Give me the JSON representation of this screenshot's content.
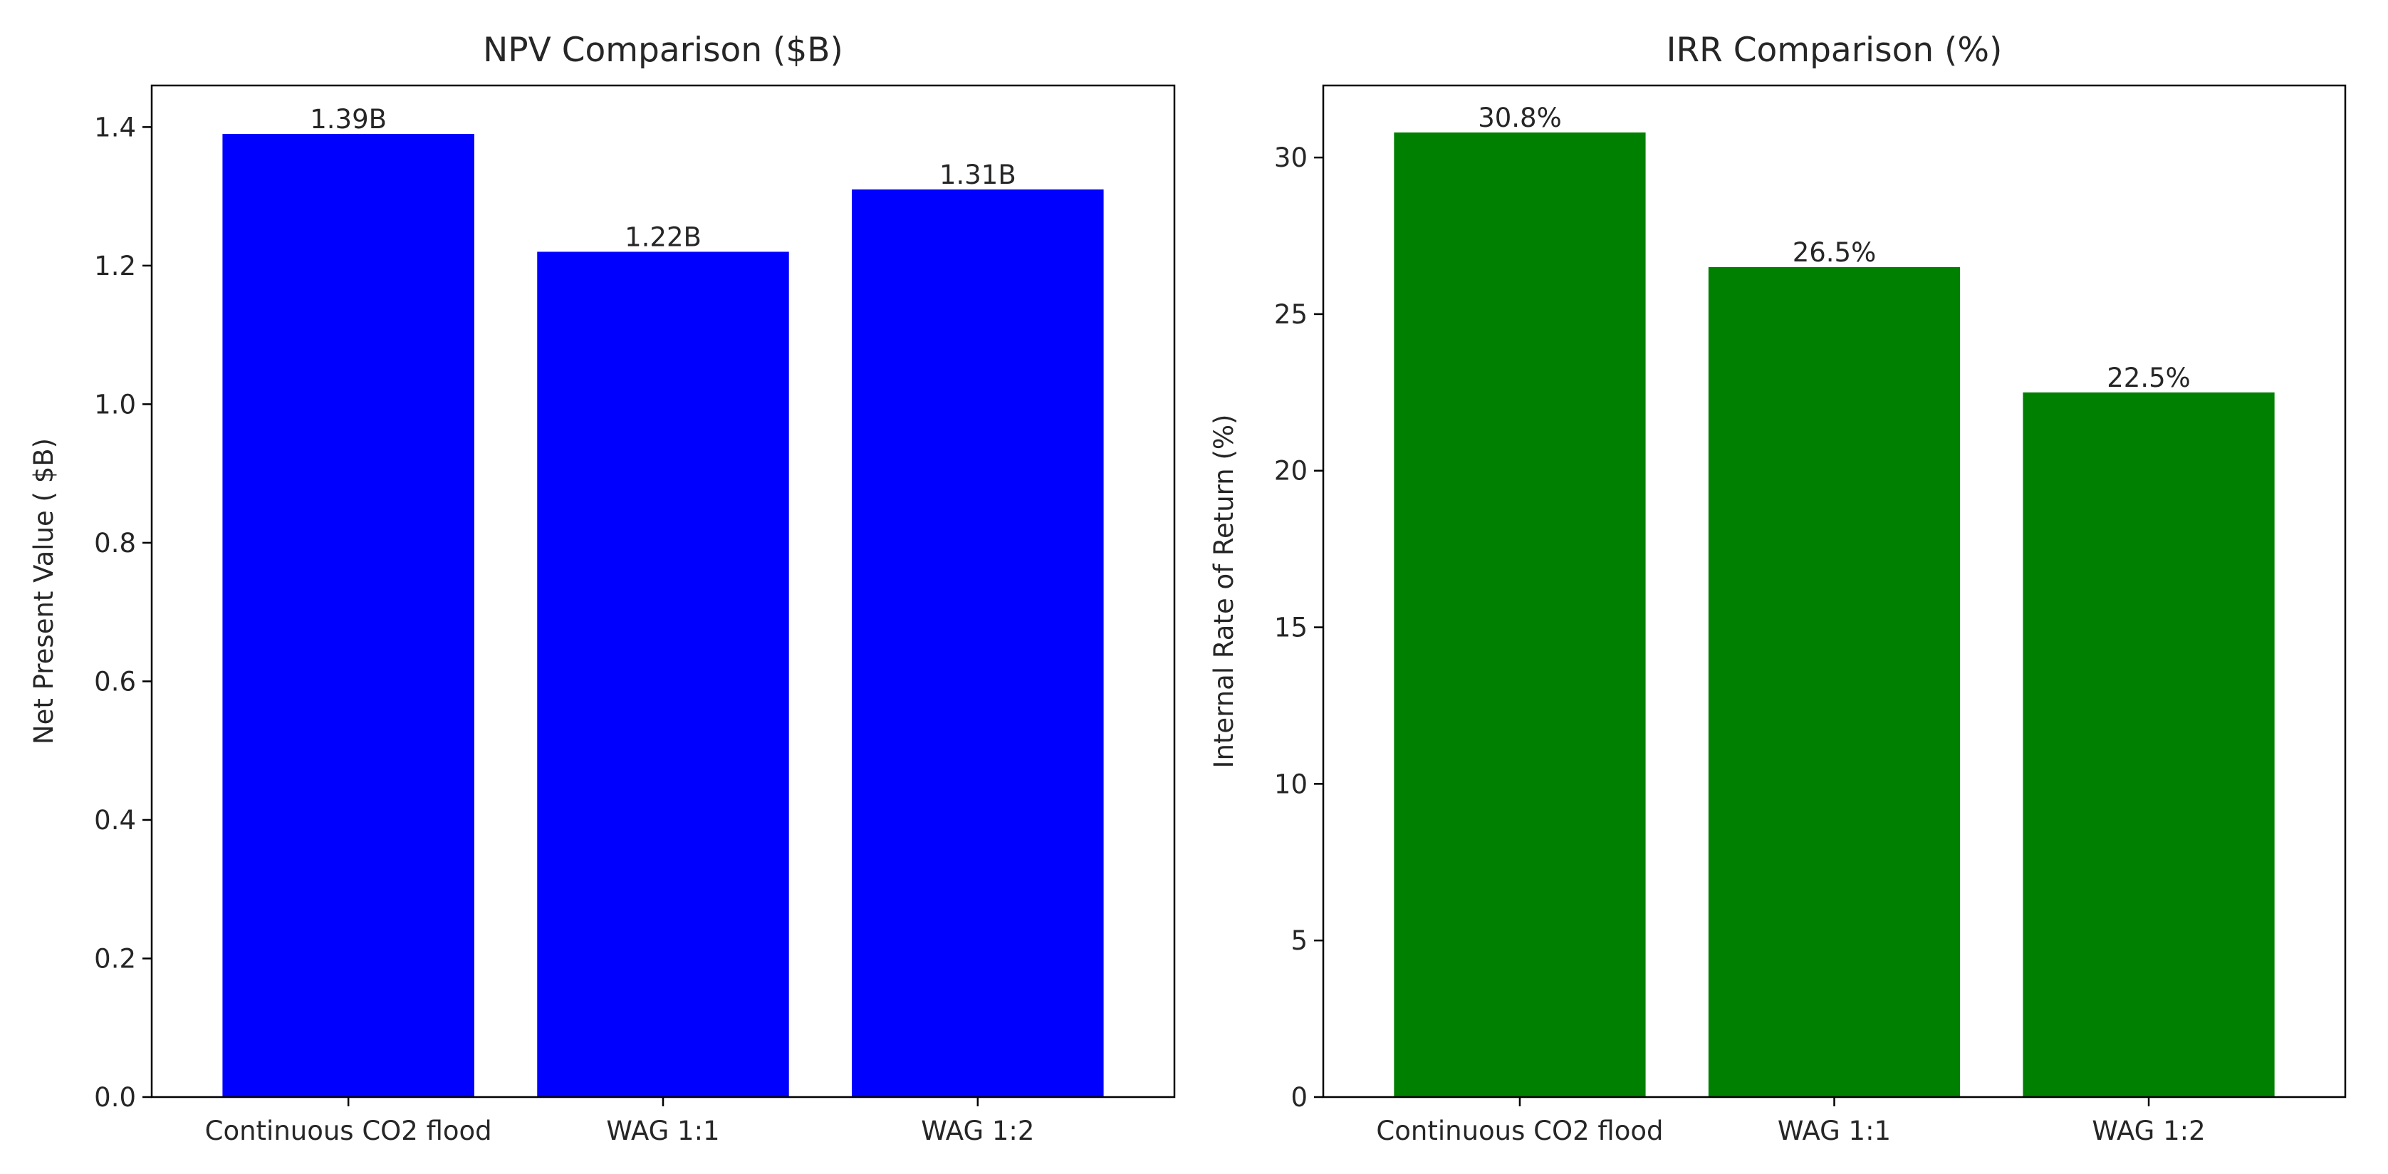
{
  "chart_data": [
    {
      "type": "bar",
      "title": "NPV Comparison ($B)",
      "xlabel": "",
      "ylabel": "Net Present Value ( $B)",
      "categories": [
        "Continuous CO2 flood",
        "WAG 1:1",
        "WAG 1:2"
      ],
      "values": [
        1.39,
        1.22,
        1.31
      ],
      "data_labels": [
        "1.39B",
        "1.22B",
        "1.31B"
      ],
      "ylim": [
        0,
        1.46
      ],
      "yticks": [
        0.0,
        0.2,
        0.4,
        0.6,
        0.8,
        1.0,
        1.2,
        1.4
      ],
      "ytick_labels": [
        "0.0",
        "0.2",
        "0.4",
        "0.6",
        "0.8",
        "1.0",
        "1.2",
        "1.4"
      ],
      "bar_color": "#0000ff",
      "grid": false
    },
    {
      "type": "bar",
      "title": "IRR Comparison (%)",
      "xlabel": "",
      "ylabel": "Internal Rate of Return (%)",
      "categories": [
        "Continuous CO2 flood",
        "WAG 1:1",
        "WAG 1:2"
      ],
      "values": [
        30.8,
        26.5,
        22.5
      ],
      "data_labels": [
        "30.8%",
        "26.5%",
        "22.5%"
      ],
      "ylim": [
        0,
        32.3
      ],
      "yticks": [
        0,
        5,
        10,
        15,
        20,
        25,
        30
      ],
      "ytick_labels": [
        "0",
        "5",
        "10",
        "15",
        "20",
        "25",
        "30"
      ],
      "bar_color": "#008000",
      "grid": false
    }
  ]
}
